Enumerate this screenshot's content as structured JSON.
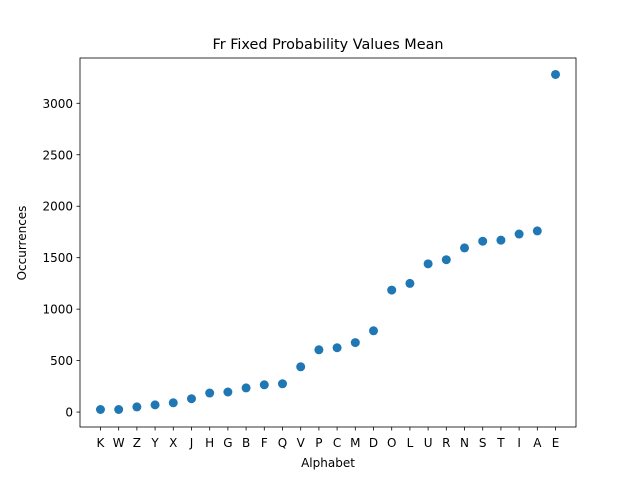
{
  "chart_data": {
    "type": "scatter",
    "title": "Fr Fixed Probability Values Mean",
    "xlabel": "Alphabet",
    "ylabel": "Occurrences",
    "categories": [
      "K",
      "W",
      "Z",
      "Y",
      "X",
      "J",
      "H",
      "G",
      "B",
      "F",
      "Q",
      "V",
      "P",
      "C",
      "M",
      "D",
      "O",
      "L",
      "U",
      "R",
      "N",
      "S",
      "T",
      "I",
      "A",
      "E"
    ],
    "values": [
      25,
      25,
      50,
      70,
      90,
      130,
      185,
      195,
      235,
      265,
      275,
      440,
      605,
      625,
      675,
      790,
      1185,
      1250,
      1440,
      1480,
      1595,
      1660,
      1670,
      1730,
      1760,
      3280
    ],
    "ylim": [
      -145,
      3440
    ],
    "yticks": [
      0,
      500,
      1000,
      1500,
      2000,
      2500,
      3000
    ],
    "marker_color": "#1f77b4",
    "grid": false,
    "legend": "none"
  }
}
